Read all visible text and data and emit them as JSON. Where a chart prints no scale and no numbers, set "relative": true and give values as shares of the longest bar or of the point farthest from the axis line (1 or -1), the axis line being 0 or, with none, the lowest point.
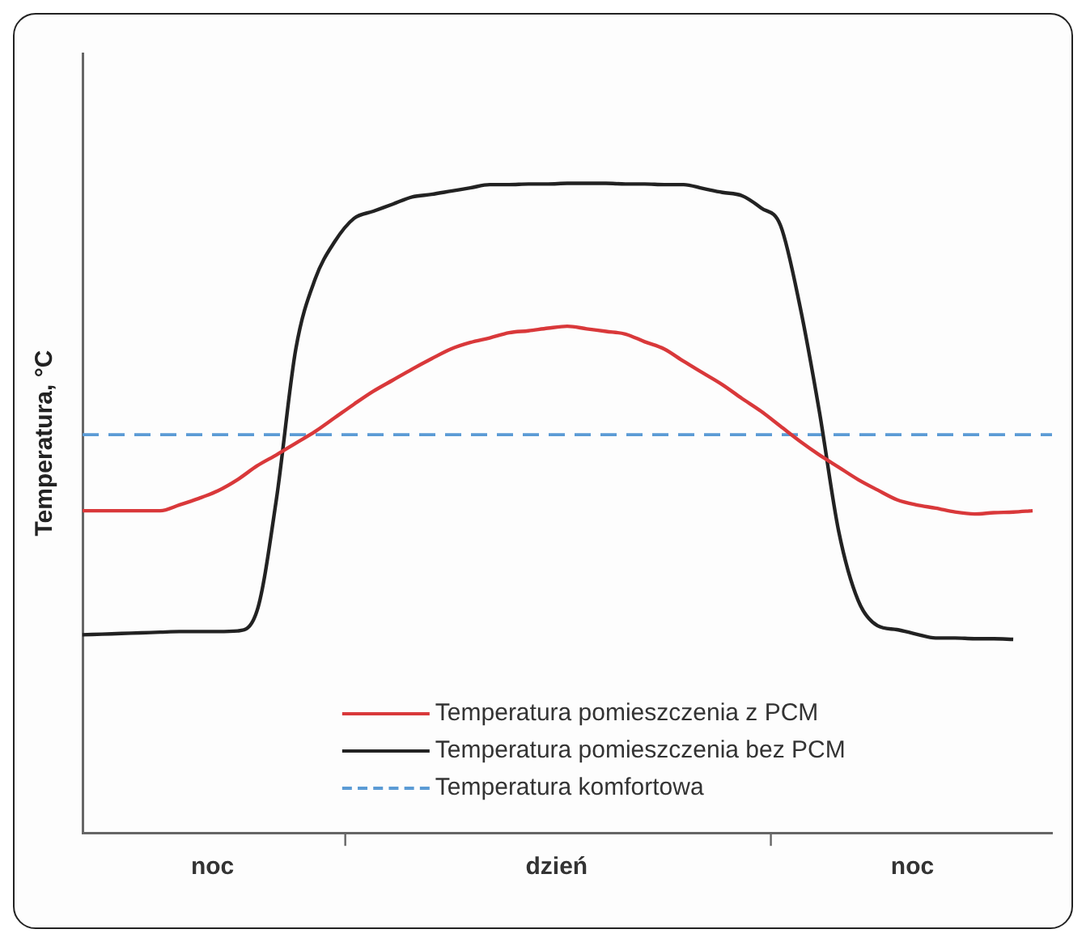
{
  "chart_data": {
    "type": "line",
    "ylabel": "Temperatura, °C",
    "relative": true,
    "categories": [
      null,
      null,
      null,
      null,
      null,
      null,
      null,
      null,
      null,
      null,
      null,
      null,
      null,
      null,
      null,
      null,
      null,
      null,
      null,
      null,
      null,
      null,
      null,
      null,
      null,
      null,
      null,
      null,
      null,
      null,
      null,
      null,
      null,
      null,
      null,
      null,
      null,
      null,
      null,
      null,
      null,
      null,
      null,
      null,
      null,
      null,
      null,
      null,
      null,
      null,
      null
    ],
    "annotations": [
      "noc",
      "dzień",
      "noc"
    ],
    "legend": "bottom",
    "grid": false,
    "marker": "none",
    "line_style": "solid",
    "series": [
      {
        "name": "Temperatura pomieszczenia z PCM",
        "color": "#d9383a",
        "values": [
          0.496,
          0.496,
          0.496,
          0.496,
          0.496,
          0.505,
          0.515,
          0.527,
          0.544,
          0.565,
          0.582,
          0.6,
          0.618,
          0.639,
          0.66,
          0.68,
          0.697,
          0.714,
          0.73,
          0.745,
          0.755,
          0.762,
          0.77,
          0.773,
          0.777,
          0.78,
          0.776,
          0.772,
          0.768,
          0.756,
          0.745,
          0.726,
          0.708,
          0.69,
          0.669,
          0.649,
          0.626,
          0.603,
          0.582,
          0.563,
          0.544,
          0.528,
          0.513,
          0.505,
          0.5,
          0.494,
          0.491,
          0.493,
          0.494,
          0.496,
          null
        ]
      },
      {
        "name": "Temperatura pomieszczenia bez PCM",
        "color": "#222222",
        "values": [
          0.305,
          0.306,
          0.307,
          0.308,
          0.309,
          0.31,
          0.31,
          0.31,
          0.311,
          0.342,
          0.514,
          0.745,
          0.853,
          0.91,
          0.946,
          0.957,
          0.968,
          0.979,
          0.983,
          0.988,
          0.993,
          0.998,
          0.998,
          0.999,
          0.999,
          1.0,
          1.0,
          1.0,
          0.999,
          0.999,
          0.998,
          0.998,
          0.992,
          0.986,
          0.981,
          0.962,
          0.935,
          0.811,
          0.649,
          0.464,
          0.358,
          0.319,
          0.313,
          0.306,
          0.3,
          0.3,
          0.299,
          0.299,
          0.298,
          null,
          null
        ]
      },
      {
        "name": "Temperatura komfortowa",
        "color": "#5b9bd5",
        "line_style": "dashed",
        "values": [
          0.613,
          0.613,
          0.613,
          0.613,
          0.613,
          0.613,
          0.613,
          0.613,
          0.613,
          0.613,
          0.613,
          0.613,
          0.613,
          0.613,
          0.613,
          0.613,
          0.613,
          0.613,
          0.613,
          0.613,
          0.613,
          0.613,
          0.613,
          0.613,
          0.613,
          0.613,
          0.613,
          0.613,
          0.613,
          0.613,
          0.613,
          0.613,
          0.613,
          0.613,
          0.613,
          0.613,
          0.613,
          0.613,
          0.613,
          0.613,
          0.613,
          0.613,
          0.613,
          0.613,
          0.613,
          0.613,
          0.613,
          0.613,
          0.613,
          0.613,
          0.613
        ]
      }
    ]
  }
}
